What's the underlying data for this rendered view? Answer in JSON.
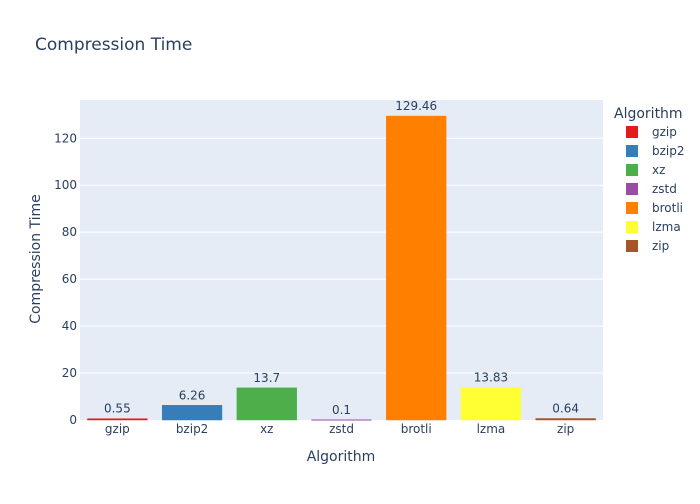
{
  "chart_data": {
    "type": "bar",
    "title": "Compression Time",
    "xlabel": "Algorithm",
    "ylabel": "Compression Time",
    "categories": [
      "gzip",
      "bzip2",
      "xz",
      "zstd",
      "brotli",
      "lzma",
      "zip"
    ],
    "values": [
      0.55,
      6.26,
      13.7,
      0.1,
      129.46,
      13.83,
      0.64
    ],
    "value_labels": [
      "0.55",
      "6.26",
      "13.7",
      "0.1",
      "129.46",
      "13.83",
      "0.64"
    ],
    "colors": [
      "#e41a1c",
      "#377eb8",
      "#4daf4a",
      "#984ea3",
      "#ff7f00",
      "#ffff33",
      "#a65628"
    ],
    "ylim": [
      0,
      136.3
    ],
    "yticks": [
      0,
      20,
      40,
      60,
      80,
      100,
      120
    ],
    "grid": true,
    "legend": {
      "title": "Algorithm",
      "placement": "right",
      "items": [
        "gzip",
        "bzip2",
        "xz",
        "zstd",
        "brotli",
        "lzma",
        "zip"
      ]
    },
    "plot_background": "#e5ecf6",
    "gridline_color": "#ffffff"
  }
}
